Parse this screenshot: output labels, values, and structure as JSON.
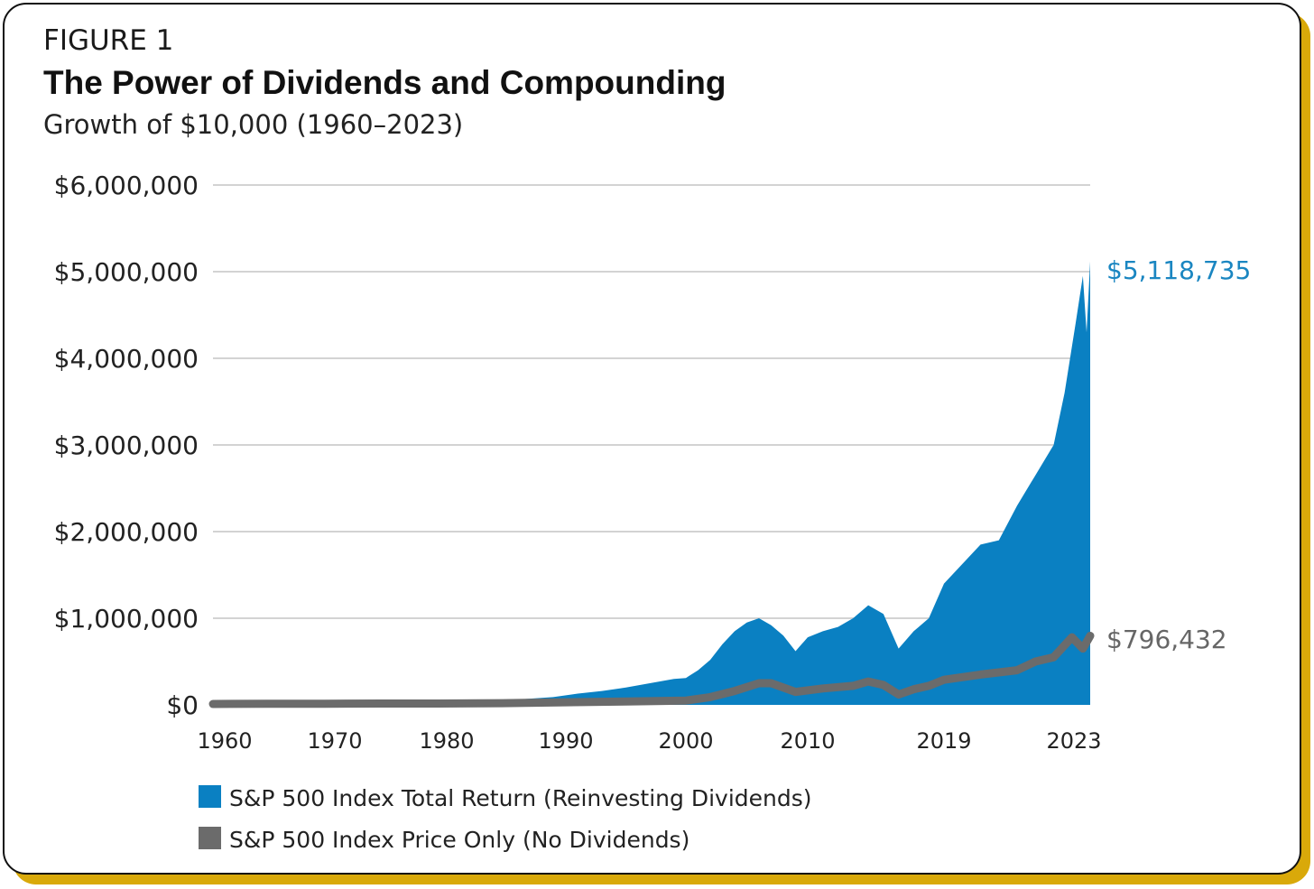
{
  "figure_label": "FIGURE 1",
  "colors": {
    "total_return": "#0a80c2",
    "price_only": "#6b6b6b",
    "frame_accent": "#d9a90a"
  },
  "chart_data": {
    "type": "area",
    "title": "The Power of Dividends and Compounding",
    "subtitle": "Growth of $10,000 (1960–2023)",
    "ylim": [
      0,
      6000000
    ],
    "xlim": [
      1960,
      2023
    ],
    "y_ticks": [
      0,
      1000000,
      2000000,
      3000000,
      4000000,
      5000000,
      6000000
    ],
    "y_tick_labels": [
      "$0",
      "$1,000,000",
      "$2,000,000",
      "$3,000,000",
      "$4,000,000",
      "$5,000,000",
      "$6,000,000"
    ],
    "x_tick_labels": [
      "1960",
      "1970",
      "1980",
      "1990",
      "2000",
      "2010",
      "2019",
      "2023"
    ],
    "grid": true,
    "legend_placement": "bottom-left",
    "series": [
      {
        "name": "S&P 500 Index Total Return (Reinvesting Dividends)",
        "end_label": "$5,118,735",
        "points": [
          [
            1960,
            10000
          ],
          [
            1965,
            15000
          ],
          [
            1970,
            20000
          ],
          [
            1975,
            25000
          ],
          [
            1980,
            30000
          ],
          [
            1985,
            50000
          ],
          [
            1989,
            90000
          ],
          [
            1991,
            130000
          ],
          [
            1993,
            160000
          ],
          [
            1995,
            200000
          ],
          [
            1997,
            250000
          ],
          [
            1999,
            300000
          ],
          [
            2000,
            310000
          ],
          [
            2001,
            400000
          ],
          [
            2002,
            520000
          ],
          [
            2003,
            700000
          ],
          [
            2004,
            850000
          ],
          [
            2005,
            950000
          ],
          [
            2006,
            1000000
          ],
          [
            2007,
            920000
          ],
          [
            2008,
            800000
          ],
          [
            2009,
            620000
          ],
          [
            2010,
            780000
          ],
          [
            2011,
            850000
          ],
          [
            2012,
            900000
          ],
          [
            2013,
            1000000
          ],
          [
            2014,
            1150000
          ],
          [
            2015,
            1050000
          ],
          [
            2016,
            650000
          ],
          [
            2017,
            850000
          ],
          [
            2018,
            1000000
          ],
          [
            2019,
            1400000
          ],
          [
            2020,
            1850000
          ],
          [
            2020.5,
            1900000
          ],
          [
            2021,
            2300000
          ],
          [
            2021.5,
            2650000
          ],
          [
            2022,
            3000000
          ],
          [
            2022.3,
            3600000
          ],
          [
            2022.6,
            4400000
          ],
          [
            2022.8,
            4950000
          ],
          [
            2022.9,
            4300000
          ],
          [
            2023,
            5118735
          ]
        ]
      },
      {
        "name": "S&P 500 Index Price Only (No Dividends)",
        "end_label": "$796,432",
        "points": [
          [
            1960,
            10000
          ],
          [
            1965,
            14000
          ],
          [
            1970,
            14000
          ],
          [
            1975,
            16000
          ],
          [
            1980,
            16000
          ],
          [
            1985,
            20000
          ],
          [
            1990,
            30000
          ],
          [
            1995,
            40000
          ],
          [
            2000,
            50000
          ],
          [
            2002,
            90000
          ],
          [
            2004,
            160000
          ],
          [
            2006,
            250000
          ],
          [
            2007,
            250000
          ],
          [
            2009,
            150000
          ],
          [
            2011,
            190000
          ],
          [
            2013,
            220000
          ],
          [
            2014,
            270000
          ],
          [
            2015,
            230000
          ],
          [
            2016,
            120000
          ],
          [
            2017,
            180000
          ],
          [
            2018,
            220000
          ],
          [
            2019,
            290000
          ],
          [
            2020,
            350000
          ],
          [
            2021,
            400000
          ],
          [
            2021.5,
            500000
          ],
          [
            2022,
            550000
          ],
          [
            2022.5,
            780000
          ],
          [
            2022.8,
            650000
          ],
          [
            2023,
            796432
          ]
        ]
      }
    ]
  }
}
